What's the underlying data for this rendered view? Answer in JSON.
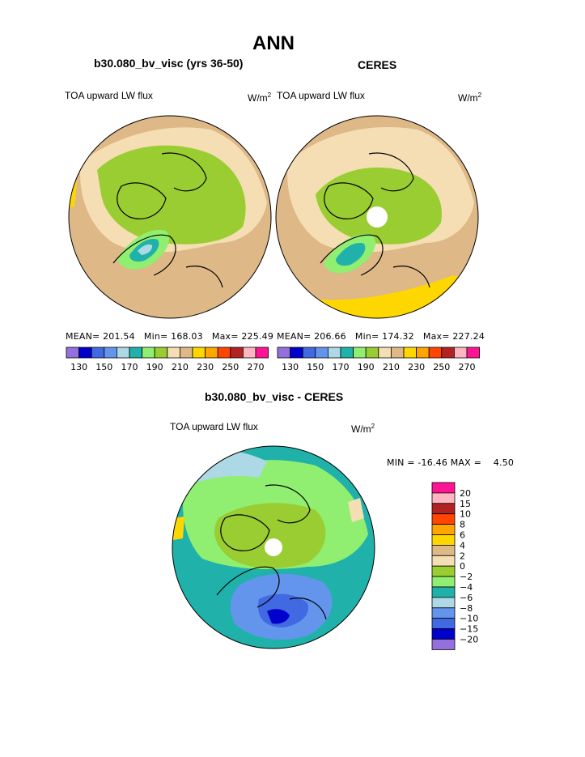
{
  "page": {
    "title": "ANN",
    "diff_title": "b30.080_bv_visc - CERES"
  },
  "panels": [
    {
      "title": "b30.080_bv_visc (yrs 36-50)",
      "field_label": "TOA upward LW flux",
      "unit_base": "W/m",
      "unit_exp": "2",
      "stats": "MEAN= 201.54   Min= 168.03   Max= 225.49"
    },
    {
      "title": "CERES",
      "field_label": "TOA upward LW flux",
      "unit_base": "W/m",
      "unit_exp": "2",
      "stats": "MEAN= 206.66   Min= 174.32   Max= 227.24"
    }
  ],
  "diff_panel": {
    "field_label": "TOA upward LW flux",
    "unit_base": "W/m",
    "unit_exp": "2",
    "stats": "MIN = -16.46 MAX =    4.50"
  },
  "colors": {
    "abs_scale": [
      "#9370db",
      "#0000cd",
      "#4169e1",
      "#6495ed",
      "#add8e6",
      "#20b2aa",
      "#90ee70",
      "#9acd32",
      "#f5deb3",
      "#deb887",
      "#ffd700",
      "#ffa500",
      "#ff4500",
      "#b22222",
      "#ffb6c1",
      "#ff1493"
    ],
    "diff_scale": [
      "#9370db",
      "#0000cd",
      "#4169e1",
      "#6495ed",
      "#add8e6",
      "#20b2aa",
      "#90ee70",
      "#9acd32",
      "#f5deb3",
      "#deb887",
      "#ffd700",
      "#ffa500",
      "#ff4500",
      "#b22222",
      "#ffb6c1",
      "#ff1493"
    ],
    "pole_hole": "#ffffff"
  },
  "chart_data": [
    {
      "type": "heatmap",
      "projection": "north polar stereographic",
      "title": "b30.080_bv_visc (yrs 36-50)",
      "field": "TOA upward LW flux",
      "units": "W/m2",
      "mean": 201.54,
      "min": 168.03,
      "max": 225.49,
      "colorbar_levels": [
        130,
        140,
        150,
        160,
        170,
        180,
        190,
        200,
        210,
        220,
        230,
        240,
        250,
        260,
        270
      ],
      "colorbar_labels": [
        "130",
        "150",
        "170",
        "190",
        "210",
        "230",
        "250",
        "270"
      ]
    },
    {
      "type": "heatmap",
      "projection": "north polar stereographic",
      "title": "CERES",
      "field": "TOA upward LW flux",
      "units": "W/m2",
      "mean": 206.66,
      "min": 174.32,
      "max": 227.24,
      "colorbar_levels": [
        130,
        140,
        150,
        160,
        170,
        180,
        190,
        200,
        210,
        220,
        230,
        240,
        250,
        260,
        270
      ],
      "colorbar_labels": [
        "130",
        "150",
        "170",
        "190",
        "210",
        "230",
        "250",
        "270"
      ]
    },
    {
      "type": "heatmap",
      "projection": "north polar stereographic",
      "title": "b30.080_bv_visc - CERES",
      "field": "TOA upward LW flux",
      "units": "W/m2",
      "min": -16.46,
      "max": 4.5,
      "colorbar_levels": [
        -20,
        -15,
        -10,
        -8,
        -6,
        -4,
        -2,
        0,
        2,
        4,
        6,
        8,
        10,
        15,
        20
      ],
      "colorbar_labels": [
        "20",
        "15",
        "10",
        "8",
        "6",
        "4",
        "2",
        "0",
        "−2",
        "−4",
        "−6",
        "−8",
        "−10",
        "−15",
        "−20"
      ]
    }
  ]
}
